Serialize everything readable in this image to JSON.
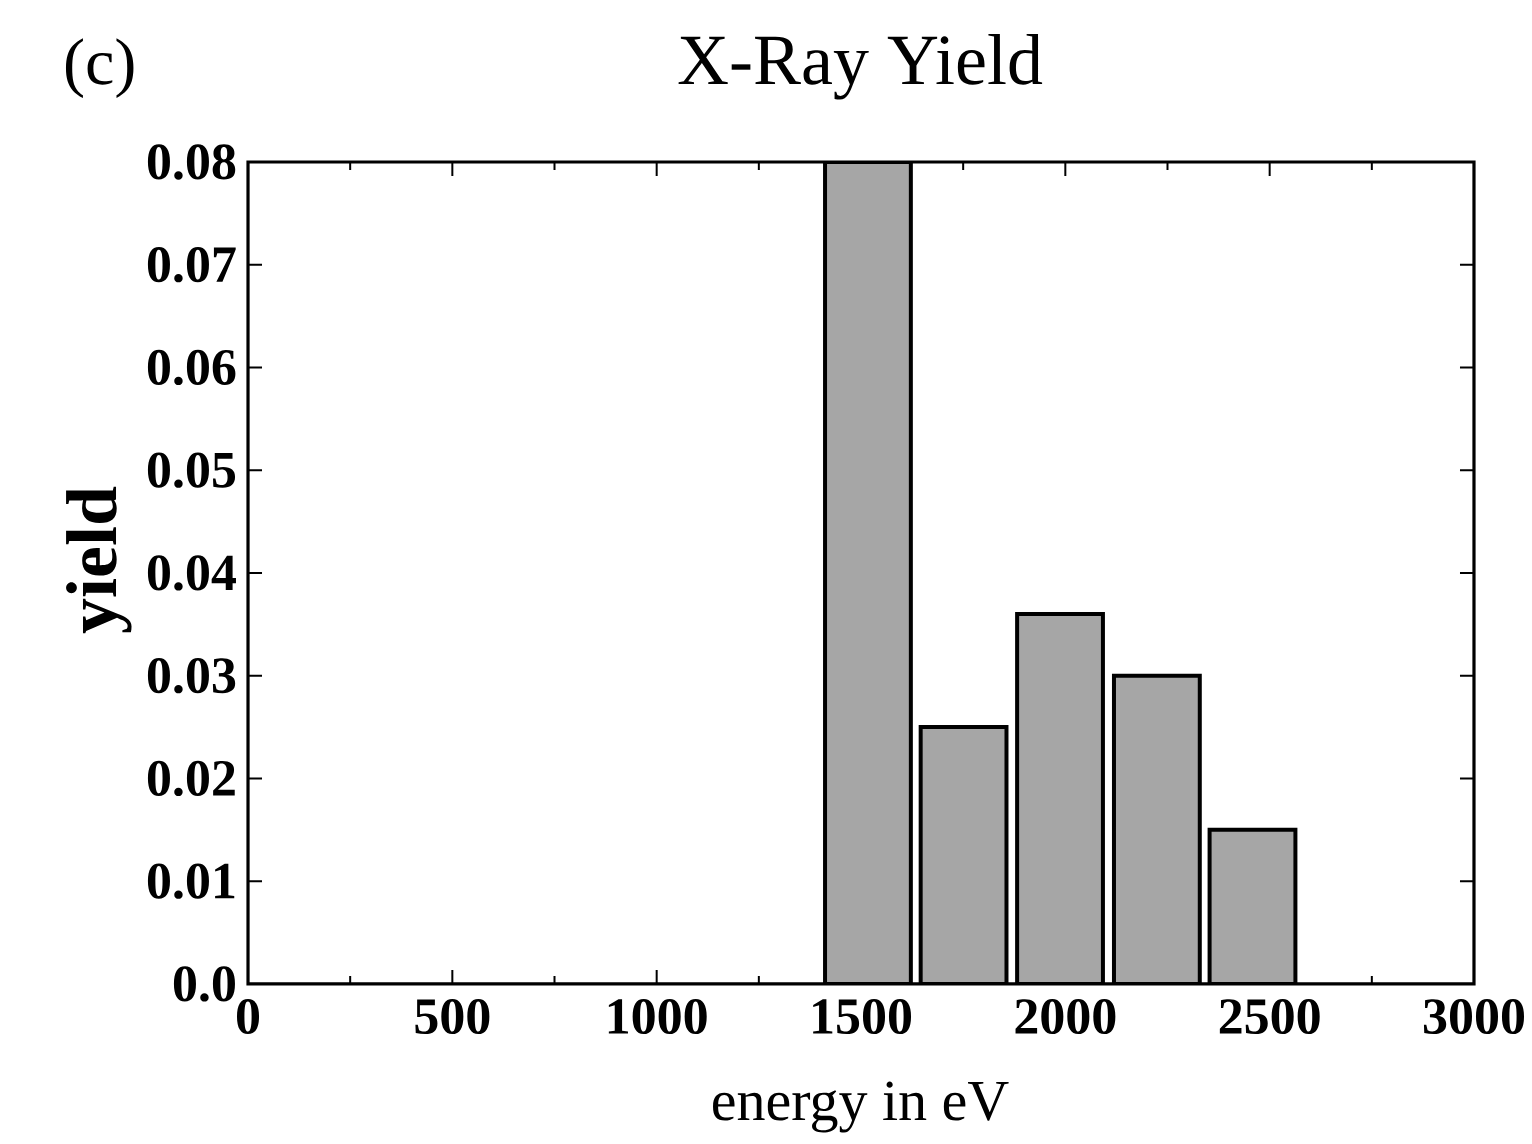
{
  "chart_data": {
    "type": "bar",
    "title": "X-Ray Yield",
    "xlabel": "energy in eV",
    "ylabel": "yield",
    "annotations": [
      "(c)"
    ],
    "x": [
      1517,
      1751,
      1987,
      2224,
      2458
    ],
    "values": [
      0.08,
      0.025,
      0.036,
      0.03,
      0.015
    ],
    "color": "#a6a6a6",
    "xlim": [
      0,
      3000
    ],
    "xticks": [
      0,
      500,
      1000,
      1500,
      2000,
      2500,
      3000
    ],
    "ylim": [
      0,
      0.08
    ],
    "yticks": [
      {
        "value": 0,
        "label": "0.0"
      },
      {
        "value": 0.01,
        "label": "0.01"
      },
      {
        "value": 0.02,
        "label": "0.02"
      },
      {
        "value": 0.03,
        "label": "0.03"
      },
      {
        "value": 0.04,
        "label": "0.04"
      },
      {
        "value": 0.05,
        "label": "0.05"
      },
      {
        "value": 0.06,
        "label": "0.06"
      },
      {
        "value": 0.07,
        "label": "0.07"
      },
      {
        "value": 0.08,
        "label": "0.08"
      }
    ]
  }
}
